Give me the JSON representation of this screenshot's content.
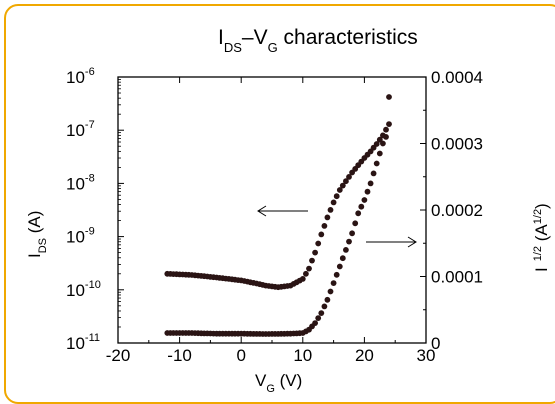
{
  "chart_data": {
    "type": "scatter",
    "title_main": "I",
    "title_sub": "DS",
    "title_dash": "–V",
    "title_sub2": "G",
    "title_rest": " characteristics",
    "xlabel_main": "V",
    "xlabel_sub": "G",
    "xlabel_unit": " (V)",
    "ylabel_left_main": "I",
    "ylabel_left_sub": "DS",
    "ylabel_left_unit": " (A)",
    "ylabel_right_main": "I",
    "ylabel_right_sup": "1/2",
    "ylabel_right_unit_open": " (A",
    "ylabel_right_unit_sup": "1/2",
    "ylabel_right_unit_close": ")",
    "xlim": [
      -20,
      30
    ],
    "xticks": [
      "-20",
      "-10",
      "0",
      "10",
      "20",
      "30"
    ],
    "y_left_scale": "log",
    "y_left_lim": [
      1e-11,
      1e-06
    ],
    "y_left_ticks": [
      {
        "base": "10",
        "exp": "-11"
      },
      {
        "base": "10",
        "exp": "-10"
      },
      {
        "base": "10",
        "exp": "-9"
      },
      {
        "base": "10",
        "exp": "-8"
      },
      {
        "base": "10",
        "exp": "-7"
      },
      {
        "base": "10",
        "exp": "-6"
      }
    ],
    "y_right_lim": [
      0,
      0.0004
    ],
    "y_right_ticks": [
      "0",
      "0.0001",
      "0.0002",
      "0.0003",
      "0.0004"
    ],
    "grid": false,
    "marker_color": "#2a1414",
    "border_color": "#f0a800",
    "series": [
      {
        "axis": "left",
        "points": [
          [
            -12,
            2e-10
          ],
          [
            -10,
            1.95e-10
          ],
          [
            -8,
            1.9e-10
          ],
          [
            -6,
            1.8e-10
          ],
          [
            -4,
            1.7e-10
          ],
          [
            -2,
            1.6e-10
          ],
          [
            0,
            1.5e-10
          ],
          [
            2,
            1.35e-10
          ],
          [
            4,
            1.2e-10
          ],
          [
            6,
            1.12e-10
          ],
          [
            8,
            1.2e-10
          ],
          [
            10,
            1.6e-10
          ],
          [
            11,
            2.5e-10
          ],
          [
            12,
            5e-10
          ],
          [
            13,
            1.1e-09
          ],
          [
            14,
            2.3e-09
          ],
          [
            15,
            4.4e-09
          ],
          [
            16,
            7.5e-09
          ],
          [
            17,
            1.1e-08
          ],
          [
            18,
            1.6e-08
          ],
          [
            19,
            2.2e-08
          ],
          [
            20,
            3e-08
          ],
          [
            21,
            4e-08
          ],
          [
            22,
            5.5e-08
          ],
          [
            23,
            8e-08
          ],
          [
            24,
            1.3e-07
          ]
        ]
      },
      {
        "axis": "right",
        "points": [
          [
            -12,
            1.5e-05
          ],
          [
            -8,
            1.5e-05
          ],
          [
            -4,
            1.4e-05
          ],
          [
            0,
            1.4e-05
          ],
          [
            4,
            1.35e-05
          ],
          [
            8,
            1.4e-05
          ],
          [
            10,
            1.5e-05
          ],
          [
            11,
            2e-05
          ],
          [
            12,
            3e-05
          ],
          [
            13,
            4.5e-05
          ],
          [
            14,
            6.5e-05
          ],
          [
            15,
            9e-05
          ],
          [
            16,
            0.000115
          ],
          [
            17,
            0.00014
          ],
          [
            18,
            0.000165
          ],
          [
            19,
            0.000195
          ],
          [
            20,
            0.000215
          ],
          [
            21,
            0.00024
          ],
          [
            22,
            0.00027
          ],
          [
            23,
            0.0003
          ],
          [
            23.5,
            0.00031
          ],
          [
            24,
            0.00037
          ]
        ]
      }
    ],
    "annotations": [
      {
        "type": "arrow",
        "direction": "left",
        "points_to": "left axis"
      },
      {
        "type": "arrow",
        "direction": "right",
        "points_to": "right axis"
      }
    ]
  }
}
